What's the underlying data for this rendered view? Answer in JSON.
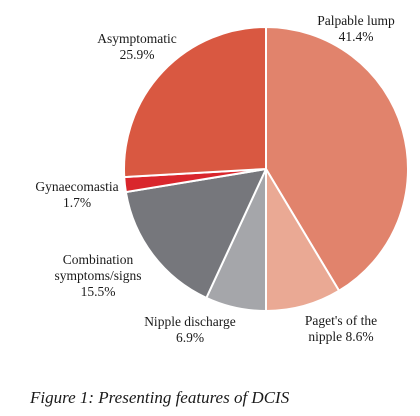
{
  "chart_data": {
    "type": "pie",
    "caption": "Figure 1: Presenting features of DCIS",
    "slices": [
      {
        "label_lines": [
          "Palpable lump"
        ],
        "value_text": "41.4%",
        "value": 41.4,
        "color": "#E1836C"
      },
      {
        "label_lines": [
          "Paget's of the",
          "nipple"
        ],
        "value_text": "8.6%",
        "value": 8.6,
        "color": "#EAA994"
      },
      {
        "label_lines": [
          "Nipple discharge"
        ],
        "value_text": "6.9%",
        "value": 6.9,
        "color": "#A5A6AA"
      },
      {
        "label_lines": [
          "Combination",
          "symptoms/signs"
        ],
        "value_text": "15.5%",
        "value": 15.5,
        "color": "#76777C"
      },
      {
        "label_lines": [
          "Gynaecomastia"
        ],
        "value_text": "1.7%",
        "value": 1.7,
        "color": "#D9262C"
      },
      {
        "label_lines": [
          "Asymptomatic"
        ],
        "value_text": "25.9%",
        "value": 25.9,
        "color": "#D95841"
      }
    ]
  }
}
